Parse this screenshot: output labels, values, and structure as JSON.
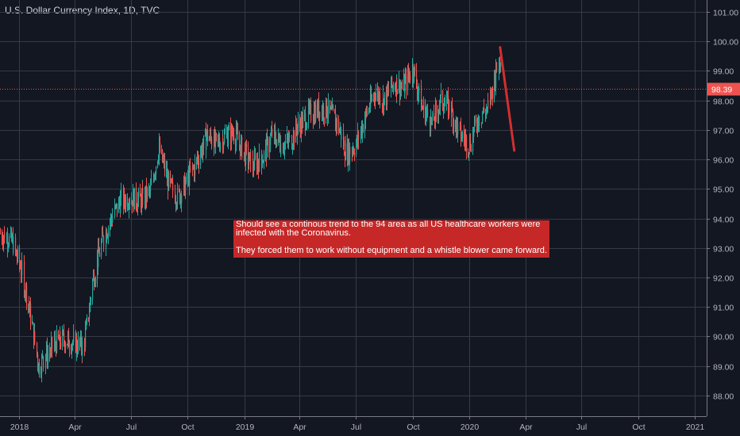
{
  "header": {
    "title": "U.S. Dollar Currency Index, 1D, TVC"
  },
  "annotation": {
    "line1": "Should see a continous trend to the 94 area as all US healthcare workers were infected with the Coronavirus.",
    "line2": "They forced them to work without equipment and a whistle blower came forward."
  },
  "colors": {
    "background": "#131722",
    "up": "#26a69a",
    "down": "#ef5350",
    "projection": "#d32f2f",
    "price_line": "#ef5350",
    "annotation_bg": "#c62828"
  },
  "chart_data": {
    "type": "candlestick",
    "symbol": "U.S. Dollar Currency Index",
    "interval": "1D",
    "source": "TVC",
    "current_price": "98.39",
    "y_ticks": [
      "88.00",
      "89.00",
      "90.00",
      "91.00",
      "92.00",
      "93.00",
      "94.00",
      "95.00",
      "96.00",
      "97.00",
      "98.00",
      "99.00",
      "100.00",
      "101.00"
    ],
    "ylim": [
      87.3,
      101.4
    ],
    "x_ticks": [
      {
        "label": "2018",
        "date": "2018-01-01"
      },
      {
        "label": "Apr",
        "date": "2018-04-01"
      },
      {
        "label": "Jul",
        "date": "2018-07-01"
      },
      {
        "label": "Oct",
        "date": "2018-10-01"
      },
      {
        "label": "2019",
        "date": "2019-01-01"
      },
      {
        "label": "Apr",
        "date": "2019-04-01"
      },
      {
        "label": "Jul",
        "date": "2019-07-01"
      },
      {
        "label": "Oct",
        "date": "2019-10-01"
      },
      {
        "label": "2020",
        "date": "2020-01-01"
      },
      {
        "label": "Apr",
        "date": "2020-04-01"
      },
      {
        "label": "Jul",
        "date": "2020-07-01"
      },
      {
        "label": "Oct",
        "date": "2020-10-01"
      },
      {
        "label": "2021",
        "date": "2021-01-01"
      }
    ],
    "xlim": [
      "2017-12-01",
      "2021-01-20"
    ],
    "close_path": [
      [
        "2017-12-01",
        93.5
      ],
      [
        "2017-12-20",
        93.2
      ],
      [
        "2018-01-05",
        92.2
      ],
      [
        "2018-01-20",
        90.6
      ],
      [
        "2018-02-01",
        89.0
      ],
      [
        "2018-02-15",
        89.4
      ],
      [
        "2018-03-01",
        89.8
      ],
      [
        "2018-03-15",
        89.9
      ],
      [
        "2018-04-01",
        89.8
      ],
      [
        "2018-04-15",
        89.6
      ],
      [
        "2018-05-01",
        92.0
      ],
      [
        "2018-05-15",
        93.2
      ],
      [
        "2018-06-01",
        94.1
      ],
      [
        "2018-06-15",
        94.6
      ],
      [
        "2018-07-01",
        94.7
      ],
      [
        "2018-07-15",
        94.6
      ],
      [
        "2018-08-01",
        94.9
      ],
      [
        "2018-08-15",
        96.4
      ],
      [
        "2018-09-01",
        95.1
      ],
      [
        "2018-09-15",
        94.7
      ],
      [
        "2018-10-01",
        95.3
      ],
      [
        "2018-10-15",
        95.9
      ],
      [
        "2018-11-01",
        96.8
      ],
      [
        "2018-11-15",
        96.5
      ],
      [
        "2018-12-01",
        96.8
      ],
      [
        "2018-12-15",
        96.9
      ],
      [
        "2019-01-01",
        96.2
      ],
      [
        "2019-01-15",
        95.8
      ],
      [
        "2019-02-01",
        96.1
      ],
      [
        "2019-02-15",
        96.9
      ],
      [
        "2019-03-01",
        96.5
      ],
      [
        "2019-03-15",
        96.6
      ],
      [
        "2019-04-01",
        97.2
      ],
      [
        "2019-04-15",
        97.5
      ],
      [
        "2019-05-01",
        97.7
      ],
      [
        "2019-05-15",
        97.7
      ],
      [
        "2019-06-01",
        97.2
      ],
      [
        "2019-06-15",
        96.2
      ],
      [
        "2019-07-01",
        96.5
      ],
      [
        "2019-07-15",
        97.4
      ],
      [
        "2019-08-01",
        98.3
      ],
      [
        "2019-08-15",
        98.0
      ],
      [
        "2019-09-01",
        98.6
      ],
      [
        "2019-09-15",
        98.4
      ],
      [
        "2019-10-01",
        99.1
      ],
      [
        "2019-10-15",
        97.8
      ],
      [
        "2019-11-01",
        97.2
      ],
      [
        "2019-11-15",
        98.0
      ],
      [
        "2019-12-01",
        97.7
      ],
      [
        "2019-12-15",
        96.9
      ],
      [
        "2020-01-01",
        96.5
      ],
      [
        "2020-01-15",
        97.4
      ],
      [
        "2020-02-01",
        97.8
      ],
      [
        "2020-02-10",
        98.7
      ],
      [
        "2020-02-20",
        99.5
      ]
    ],
    "projection": [
      [
        "2020-02-20",
        99.8
      ],
      [
        "2020-03-14",
        96.3
      ]
    ]
  }
}
